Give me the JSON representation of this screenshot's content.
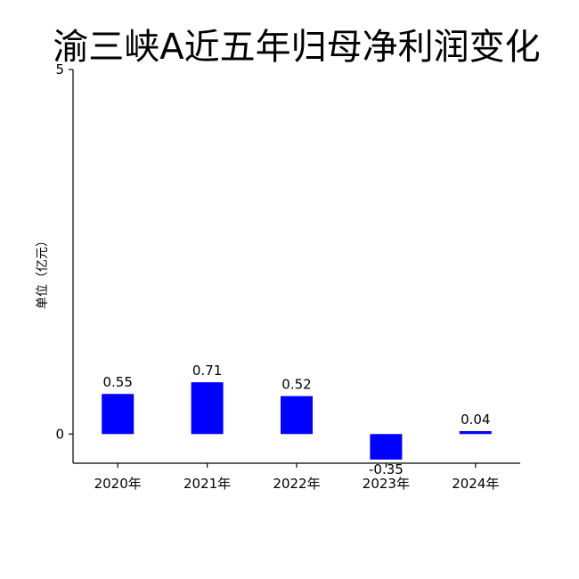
{
  "chart_data": {
    "type": "bar",
    "title": "渝三峡A近五年归母净利润变化",
    "xlabel": "",
    "ylabel": "单位（亿元）",
    "categories": [
      "2020年",
      "2021年",
      "2022年",
      "2023年",
      "2024年"
    ],
    "values": [
      0.55,
      0.71,
      0.52,
      -0.35,
      0.04
    ],
    "data_labels": [
      "0.55",
      "0.71",
      "0.52",
      "-0.35",
      "0.04"
    ],
    "ylim": [
      -0.4,
      5
    ],
    "yticks": [
      0,
      5
    ],
    "ytick_labels": [
      "0",
      "5"
    ],
    "bar_color": "#0000ff",
    "grid": false,
    "legend": "none"
  }
}
